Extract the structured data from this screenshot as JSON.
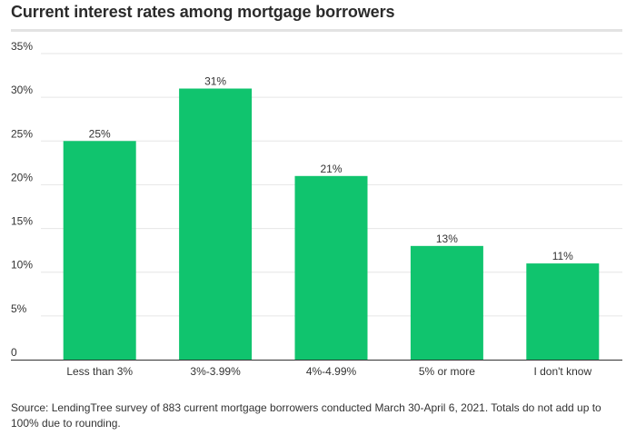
{
  "title": "Current interest rates among mortgage borrowers",
  "source": "Source: LendingTree survey of 883 current mortgage borrowers conducted March 30-April 6, 2021. Totals do not add up to 100% due to rounding.",
  "colors": {
    "bar": "#10c46e",
    "grid": "#e6e6e6",
    "axis": "#333333",
    "title_rule": "#e3e3e3"
  },
  "chart_data": {
    "type": "bar",
    "title": "Current interest rates among mortgage borrowers",
    "categories": [
      "Less than 3%",
      "3%-3.99%",
      "4%-4.99%",
      "5% or more",
      "I don't know"
    ],
    "values": [
      25,
      31,
      21,
      13,
      11
    ],
    "value_labels": [
      "25%",
      "31%",
      "21%",
      "13%",
      "11%"
    ],
    "ylim": [
      0,
      35
    ],
    "yticks": [
      0,
      5,
      10,
      15,
      20,
      25,
      30,
      35
    ],
    "ytick_labels": [
      "0",
      "5%",
      "10%",
      "15%",
      "20%",
      "25%",
      "30%",
      "35%"
    ],
    "xlabel": "",
    "ylabel": "",
    "grid": true,
    "legend": "none"
  }
}
